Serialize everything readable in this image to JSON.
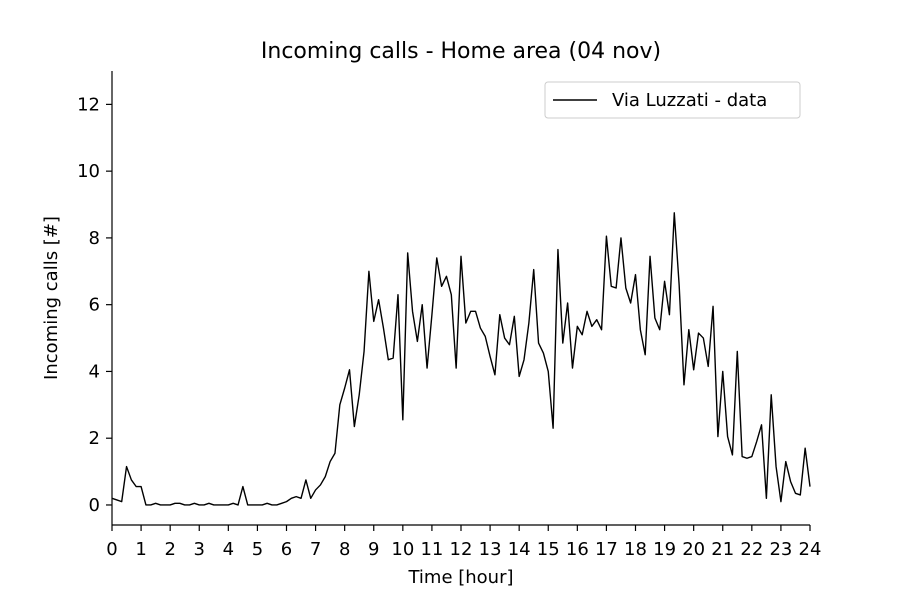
{
  "chart_data": {
    "type": "line",
    "title": "Incoming calls - Home area (04 nov)",
    "xlabel": "Time [hour]",
    "ylabel": "Incoming calls [#]",
    "xlim": [
      0,
      24
    ],
    "ylim": [
      -0.6,
      13
    ],
    "x_ticks": [
      0,
      1,
      2,
      3,
      4,
      5,
      6,
      7,
      8,
      9,
      10,
      11,
      12,
      13,
      14,
      15,
      16,
      17,
      18,
      19,
      20,
      21,
      22,
      23,
      24
    ],
    "y_ticks": [
      0,
      2,
      4,
      6,
      8,
      10,
      12
    ],
    "grid": false,
    "legend_position": "top-right",
    "series": [
      {
        "name": "Via Luzzati - data",
        "color": "#000000",
        "x": [
          0,
          0.1667,
          0.3333,
          0.5,
          0.6667,
          0.8333,
          1,
          1.1667,
          1.3333,
          1.5,
          1.6667,
          1.8333,
          2,
          2.1667,
          2.3333,
          2.5,
          2.6667,
          2.8333,
          3,
          3.1667,
          3.3333,
          3.5,
          3.6667,
          3.8333,
          4,
          4.1667,
          4.3333,
          4.5,
          4.6667,
          4.8333,
          5,
          5.1667,
          5.3333,
          5.5,
          5.6667,
          5.8333,
          6,
          6.1667,
          6.3333,
          6.5,
          6.6667,
          6.8333,
          7,
          7.1667,
          7.3333,
          7.5,
          7.6667,
          7.8333,
          8,
          8.1667,
          8.3333,
          8.5,
          8.6667,
          8.8333,
          9,
          9.1667,
          9.3333,
          9.5,
          9.6667,
          9.8333,
          10,
          10.1667,
          10.3333,
          10.5,
          10.6667,
          10.8333,
          11,
          11.1667,
          11.3333,
          11.5,
          11.6667,
          11.8333,
          12,
          12.1667,
          12.3333,
          12.5,
          12.6667,
          12.8333,
          13,
          13.1667,
          13.3333,
          13.5,
          13.6667,
          13.8333,
          14,
          14.1667,
          14.3333,
          14.5,
          14.6667,
          14.8333,
          15,
          15.1667,
          15.3333,
          15.5,
          15.6667,
          15.8333,
          16,
          16.1667,
          16.3333,
          16.5,
          16.6667,
          16.8333,
          17,
          17.1667,
          17.3333,
          17.5,
          17.6667,
          17.8333,
          18,
          18.1667,
          18.3333,
          18.5,
          18.6667,
          18.8333,
          19,
          19.1667,
          19.3333,
          19.5,
          19.6667,
          19.8333,
          20,
          20.1667,
          20.3333,
          20.5,
          20.6667,
          20.8333,
          21,
          21.1667,
          21.3333,
          21.5,
          21.6667,
          21.8333,
          22,
          22.1667,
          22.3333,
          22.5,
          22.6667,
          22.8333,
          23,
          23.1667,
          23.3333,
          23.5,
          23.6667,
          23.8333,
          24
        ],
        "values": [
          0.2,
          0.15,
          0.1,
          1.15,
          0.75,
          0.55,
          0.55,
          0.0,
          0.0,
          0.05,
          0.0,
          0.0,
          0.0,
          0.05,
          0.05,
          0.0,
          0.0,
          0.05,
          0.0,
          0.0,
          0.05,
          0.0,
          0.0,
          0.0,
          0.0,
          0.05,
          0.0,
          0.55,
          0.0,
          0.0,
          0.0,
          0.0,
          0.05,
          0.0,
          0.0,
          0.05,
          0.1,
          0.2,
          0.25,
          0.2,
          0.75,
          0.2,
          0.45,
          0.6,
          0.85,
          1.3,
          1.55,
          3.0,
          3.5,
          4.05,
          2.35,
          3.3,
          4.6,
          7.0,
          5.5,
          6.15,
          5.3,
          4.35,
          4.4,
          6.3,
          2.55,
          7.55,
          5.8,
          4.9,
          6.0,
          4.1,
          5.7,
          7.4,
          6.55,
          6.85,
          6.3,
          4.1,
          7.45,
          5.45,
          5.8,
          5.8,
          5.3,
          5.05,
          4.45,
          3.9,
          5.7,
          5.0,
          4.8,
          5.65,
          3.85,
          4.35,
          5.45,
          7.05,
          4.85,
          4.55,
          4.0,
          2.3,
          7.65,
          4.85,
          6.05,
          4.1,
          5.35,
          5.1,
          5.8,
          5.35,
          5.55,
          5.25,
          8.05,
          6.55,
          6.5,
          8.0,
          6.5,
          6.05,
          6.9,
          5.25,
          4.5,
          7.45,
          5.6,
          5.25,
          6.7,
          5.7,
          8.75,
          6.6,
          3.6,
          5.25,
          4.05,
          5.15,
          5.0,
          4.15,
          5.95,
          2.05,
          4.0,
          2.05,
          1.5,
          4.6,
          1.45,
          1.4,
          1.45,
          1.9,
          2.4,
          0.2,
          3.3,
          1.15,
          0.1,
          1.3,
          0.7,
          0.35,
          0.3,
          1.7,
          0.55
        ]
      }
    ]
  }
}
